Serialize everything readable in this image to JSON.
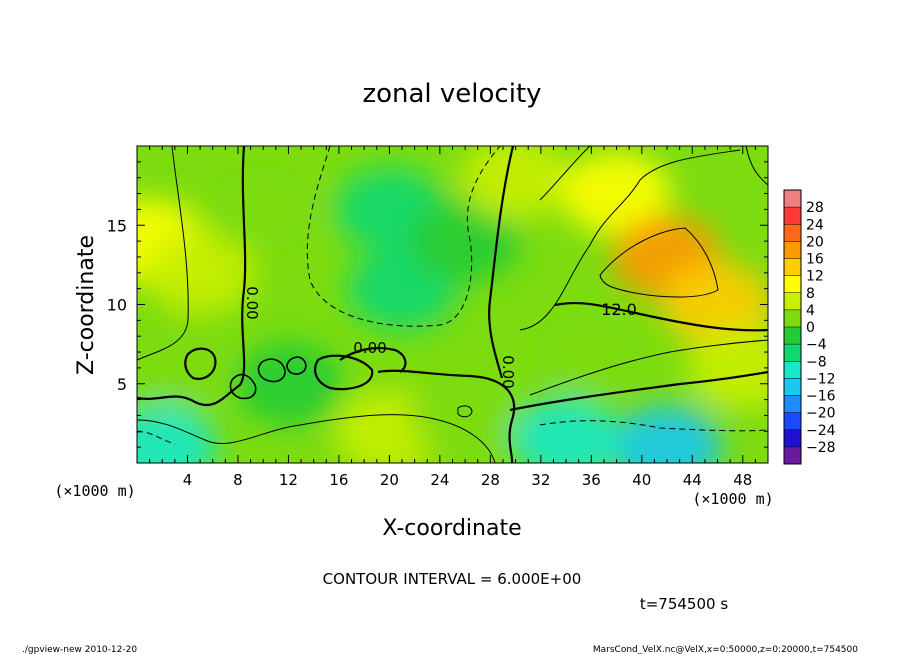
{
  "chart_data": {
    "type": "heatmap",
    "title": "zonal velocity",
    "xlabel": "X-coordinate",
    "ylabel": "Z-coordinate",
    "x_unit_label": "(×1000 m)",
    "y_unit_label": "(×1000 m)",
    "xlim": [
      0,
      50
    ],
    "ylim": [
      0,
      20
    ],
    "x_ticks": [
      4,
      8,
      12,
      16,
      20,
      24,
      28,
      32,
      36,
      40,
      44,
      48
    ],
    "y_ticks": [
      5,
      10,
      15
    ],
    "colorbar_ticks": [
      28,
      24,
      20,
      16,
      12,
      8,
      4,
      0,
      -4,
      -8,
      -12,
      -16,
      -20,
      -24,
      -28
    ],
    "colorbar_colors": [
      "#f08080",
      "#ff3838",
      "#ff6a1a",
      "#ff9a00",
      "#ffcc00",
      "#ffff00",
      "#c8f000",
      "#7cdc10",
      "#22cc33",
      "#10d870",
      "#18e8c8",
      "#18c8f0",
      "#1c8cff",
      "#1c48ff",
      "#2010d0",
      "#6a1aa0"
    ],
    "contour_interval": "CONTOUR INTERVAL = 6.000E+00",
    "contour_labels": [
      "0.00",
      "0.00",
      "0.00",
      "12.0"
    ],
    "field_samples": [
      {
        "x": 1,
        "z": 14,
        "u": 10
      },
      {
        "x": 5,
        "z": 12,
        "u": 6
      },
      {
        "x": 10,
        "z": 16,
        "u": 3
      },
      {
        "x": 20,
        "z": 16,
        "u": -7
      },
      {
        "x": 21,
        "z": 11,
        "u": -5
      },
      {
        "x": 26,
        "z": 14,
        "u": -2
      },
      {
        "x": 30,
        "z": 18,
        "u": 4
      },
      {
        "x": 38,
        "z": 17,
        "u": 10
      },
      {
        "x": 42,
        "z": 13,
        "u": 17
      },
      {
        "x": 46,
        "z": 10,
        "u": 12
      },
      {
        "x": 48,
        "z": 6,
        "u": 4
      },
      {
        "x": 36,
        "z": 7,
        "u": 3
      },
      {
        "x": 3,
        "z": 6,
        "u": 1
      },
      {
        "x": 12,
        "z": 5,
        "u": -1
      },
      {
        "x": 20,
        "z": 2,
        "u": 7
      },
      {
        "x": 26,
        "z": 3,
        "u": 3
      },
      {
        "x": 2,
        "z": 1,
        "u": -10
      },
      {
        "x": 42,
        "z": 1,
        "u": -14
      },
      {
        "x": 34,
        "z": 1.5,
        "u": -9
      }
    ]
  },
  "annotations": {
    "time": "t=754500 s",
    "footer_left": "./gpview-new  2010-12-20",
    "footer_right": "MarsCond_VelX.nc@VelX,x=0:50000,z=0:20000,t=754500"
  }
}
